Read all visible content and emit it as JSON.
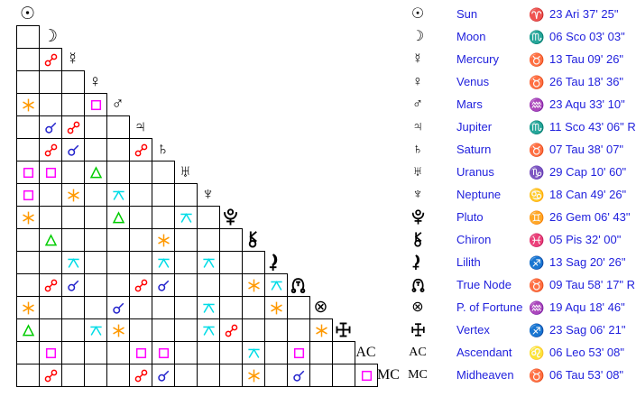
{
  "page": {
    "background": "#ffffff",
    "text_blue": "#2222dd",
    "grid_line_color": "#000000"
  },
  "aspect_types": {
    "conjunction": {
      "label": "conjunction",
      "symbol": "svg:conjunction",
      "color": "#2222cc"
    },
    "opposition": {
      "label": "opposition",
      "symbol": "svg:opposition",
      "color": "#ff0000"
    },
    "square": {
      "label": "square",
      "symbol": "svg:square",
      "color": "#ff00ff"
    },
    "trine": {
      "label": "trine",
      "symbol": "svg:trine",
      "color": "#00cc00"
    },
    "sextile": {
      "label": "sextile",
      "symbol": "svg:sextile",
      "color": "#ff9900"
    },
    "quincunx": {
      "label": "quincunx",
      "symbol": "svg:quincunx",
      "color": "#00dce6"
    }
  },
  "grid": {
    "cell_size": 25,
    "planets": [
      {
        "id": "sun",
        "glyph": "☉",
        "serif": false
      },
      {
        "id": "moon",
        "glyph": "☽",
        "serif": false
      },
      {
        "id": "mercury",
        "glyph": "☿",
        "serif": false
      },
      {
        "id": "venus",
        "glyph": "♀",
        "serif": false
      },
      {
        "id": "mars",
        "glyph": "♂",
        "serif": false
      },
      {
        "id": "jupiter",
        "glyph": "♃",
        "serif": false
      },
      {
        "id": "saturn",
        "glyph": "♄",
        "serif": false
      },
      {
        "id": "uranus",
        "glyph": "♅",
        "serif": false
      },
      {
        "id": "neptune",
        "glyph": "♆",
        "serif": false
      },
      {
        "id": "pluto",
        "glyph": "svg:pluto",
        "serif": false
      },
      {
        "id": "chiron",
        "glyph": "svg:chiron",
        "serif": false
      },
      {
        "id": "lilith",
        "glyph": "svg:lilith",
        "serif": false
      },
      {
        "id": "truenode",
        "glyph": "svg:truenode",
        "serif": false
      },
      {
        "id": "fortune",
        "glyph": "⊗",
        "serif": false
      },
      {
        "id": "vertex",
        "glyph": "svg:vertex",
        "serif": false
      },
      {
        "id": "ac",
        "glyph": "AC",
        "serif": true
      },
      {
        "id": "mc",
        "glyph": "MC",
        "serif": true
      }
    ],
    "aspects": [
      {
        "r": 3,
        "c": 2,
        "t": "opposition"
      },
      {
        "r": 5,
        "c": 1,
        "t": "sextile"
      },
      {
        "r": 5,
        "c": 4,
        "t": "square"
      },
      {
        "r": 6,
        "c": 2,
        "t": "conjunction"
      },
      {
        "r": 6,
        "c": 3,
        "t": "opposition"
      },
      {
        "r": 7,
        "c": 2,
        "t": "opposition"
      },
      {
        "r": 7,
        "c": 3,
        "t": "conjunction"
      },
      {
        "r": 7,
        "c": 6,
        "t": "opposition"
      },
      {
        "r": 8,
        "c": 1,
        "t": "square"
      },
      {
        "r": 8,
        "c": 2,
        "t": "square"
      },
      {
        "r": 8,
        "c": 4,
        "t": "trine"
      },
      {
        "r": 9,
        "c": 1,
        "t": "square"
      },
      {
        "r": 9,
        "c": 3,
        "t": "sextile"
      },
      {
        "r": 9,
        "c": 5,
        "t": "quincunx"
      },
      {
        "r": 10,
        "c": 1,
        "t": "sextile"
      },
      {
        "r": 10,
        "c": 5,
        "t": "trine"
      },
      {
        "r": 10,
        "c": 8,
        "t": "quincunx"
      },
      {
        "r": 11,
        "c": 2,
        "t": "trine"
      },
      {
        "r": 11,
        "c": 7,
        "t": "sextile"
      },
      {
        "r": 12,
        "c": 3,
        "t": "quincunx"
      },
      {
        "r": 12,
        "c": 7,
        "t": "quincunx"
      },
      {
        "r": 12,
        "c": 9,
        "t": "quincunx"
      },
      {
        "r": 13,
        "c": 2,
        "t": "opposition"
      },
      {
        "r": 13,
        "c": 3,
        "t": "conjunction"
      },
      {
        "r": 13,
        "c": 6,
        "t": "opposition"
      },
      {
        "r": 13,
        "c": 7,
        "t": "conjunction"
      },
      {
        "r": 13,
        "c": 11,
        "t": "sextile"
      },
      {
        "r": 13,
        "c": 12,
        "t": "quincunx"
      },
      {
        "r": 14,
        "c": 1,
        "t": "sextile"
      },
      {
        "r": 14,
        "c": 5,
        "t": "conjunction"
      },
      {
        "r": 14,
        "c": 9,
        "t": "quincunx"
      },
      {
        "r": 14,
        "c": 12,
        "t": "sextile"
      },
      {
        "r": 15,
        "c": 1,
        "t": "trine"
      },
      {
        "r": 15,
        "c": 4,
        "t": "quincunx"
      },
      {
        "r": 15,
        "c": 5,
        "t": "sextile"
      },
      {
        "r": 15,
        "c": 9,
        "t": "quincunx"
      },
      {
        "r": 15,
        "c": 10,
        "t": "opposition"
      },
      {
        "r": 15,
        "c": 14,
        "t": "sextile"
      },
      {
        "r": 16,
        "c": 2,
        "t": "square"
      },
      {
        "r": 16,
        "c": 6,
        "t": "square"
      },
      {
        "r": 16,
        "c": 7,
        "t": "square"
      },
      {
        "r": 16,
        "c": 11,
        "t": "quincunx"
      },
      {
        "r": 16,
        "c": 13,
        "t": "square"
      },
      {
        "r": 17,
        "c": 2,
        "t": "opposition"
      },
      {
        "r": 17,
        "c": 6,
        "t": "opposition"
      },
      {
        "r": 17,
        "c": 7,
        "t": "conjunction"
      },
      {
        "r": 17,
        "c": 11,
        "t": "sextile"
      },
      {
        "r": 17,
        "c": 13,
        "t": "conjunction"
      },
      {
        "r": 17,
        "c": 16,
        "t": "square"
      }
    ]
  },
  "table": {
    "rows": [
      {
        "id": "sun",
        "glyph": "☉",
        "serif": false,
        "name": "Sun",
        "sign": "Aries",
        "sign_glyph": "♈",
        "position": "23 Ari 37' 25\""
      },
      {
        "id": "moon",
        "glyph": "☽",
        "serif": false,
        "name": "Moon",
        "sign": "Scorpio",
        "sign_glyph": "♏",
        "position": "06 Sco 03' 03\""
      },
      {
        "id": "mercury",
        "glyph": "☿",
        "serif": false,
        "name": "Mercury",
        "sign": "Taurus",
        "sign_glyph": "♉",
        "position": "13 Tau 09' 26\""
      },
      {
        "id": "venus",
        "glyph": "♀",
        "serif": false,
        "name": "Venus",
        "sign": "Taurus",
        "sign_glyph": "♉",
        "position": "26 Tau 18' 36\""
      },
      {
        "id": "mars",
        "glyph": "♂",
        "serif": false,
        "name": "Mars",
        "sign": "Aquarius",
        "sign_glyph": "♒",
        "position": "23 Aqu 33' 10\""
      },
      {
        "id": "jupiter",
        "glyph": "♃",
        "serif": false,
        "name": "Jupiter",
        "sign": "Scorpio",
        "sign_glyph": "♏",
        "position": "11 Sco 43' 06\" R"
      },
      {
        "id": "saturn",
        "glyph": "♄",
        "serif": false,
        "name": "Saturn",
        "sign": "Taurus",
        "sign_glyph": "♉",
        "position": "07 Tau 38' 07\""
      },
      {
        "id": "uranus",
        "glyph": "♅",
        "serif": false,
        "name": "Uranus",
        "sign": "Capricorn",
        "sign_glyph": "♑",
        "position": "29 Cap 10' 60\""
      },
      {
        "id": "neptune",
        "glyph": "♆",
        "serif": false,
        "name": "Neptune",
        "sign": "Cancer",
        "sign_glyph": "♋",
        "position": "18 Can 49' 26\""
      },
      {
        "id": "pluto",
        "glyph": "svg:pluto",
        "serif": false,
        "name": "Pluto",
        "sign": "Gemini",
        "sign_glyph": "♊",
        "position": "26 Gem 06' 43\""
      },
      {
        "id": "chiron",
        "glyph": "svg:chiron",
        "serif": false,
        "name": "Chiron",
        "sign": "Pisces",
        "sign_glyph": "♓",
        "position": "05 Pis 32' 00\""
      },
      {
        "id": "lilith",
        "glyph": "svg:lilith",
        "serif": false,
        "name": "Lilith",
        "sign": "Sagittarius",
        "sign_glyph": "♐",
        "position": "13 Sag 20' 26\""
      },
      {
        "id": "truenode",
        "glyph": "svg:truenode",
        "serif": false,
        "name": "True Node",
        "sign": "Taurus",
        "sign_glyph": "♉",
        "position": "09 Tau 58' 17\" R"
      },
      {
        "id": "fortune",
        "glyph": "⊗",
        "serif": false,
        "name": "P. of Fortune",
        "sign": "Aquarius",
        "sign_glyph": "♒",
        "position": "19 Aqu 18' 46\""
      },
      {
        "id": "vertex",
        "glyph": "svg:vertex",
        "serif": false,
        "name": "Vertex",
        "sign": "Sagittarius",
        "sign_glyph": "♐",
        "position": "23 Sag 06' 21\""
      },
      {
        "id": "ac",
        "glyph": "AC",
        "serif": true,
        "name": "Ascendant",
        "sign": "Leo",
        "sign_glyph": "♌",
        "position": "06 Leo 53' 08\""
      },
      {
        "id": "mc",
        "glyph": "MC",
        "serif": true,
        "name": "Midheaven",
        "sign": "Taurus",
        "sign_glyph": "♉",
        "position": "06 Tau 53' 08\""
      }
    ]
  }
}
